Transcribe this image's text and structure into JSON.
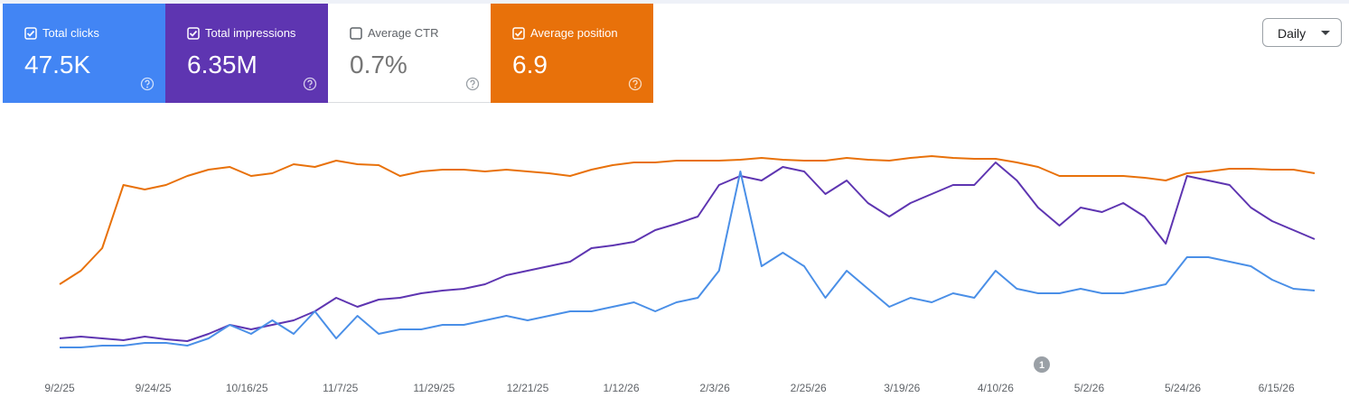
{
  "cards": [
    {
      "label": "Total clicks",
      "value": "47.5K",
      "checked": true,
      "color": "#4285f4"
    },
    {
      "label": "Total impressions",
      "value": "6.35M",
      "checked": true,
      "color": "#5e35b1"
    },
    {
      "label": "Average CTR",
      "value": "0.7%",
      "checked": false,
      "color": "#ffffff"
    },
    {
      "label": "Average position",
      "value": "6.9",
      "checked": true,
      "color": "#e8710a"
    }
  ],
  "controls": {
    "granularity": "Daily"
  },
  "annotations": [
    {
      "label": "1"
    }
  ],
  "chart_data": {
    "type": "line",
    "x": [
      "9/2/25",
      "9/7/25",
      "9/12/25",
      "9/17/25",
      "9/22/25",
      "9/27/25",
      "10/2/25",
      "10/7/25",
      "10/12/25",
      "10/17/25",
      "10/22/25",
      "10/27/25",
      "11/1/25",
      "11/6/25",
      "11/11/25",
      "11/16/25",
      "11/21/25",
      "11/26/25",
      "12/1/25",
      "12/6/25",
      "12/11/25",
      "12/16/25",
      "12/21/25",
      "12/26/25",
      "12/31/25",
      "1/5/26",
      "1/10/26",
      "1/15/26",
      "1/20/26",
      "1/25/26",
      "1/30/26",
      "2/4/26",
      "2/9/26",
      "2/14/26",
      "2/19/26",
      "2/24/26",
      "3/1/26",
      "3/6/26",
      "3/11/26",
      "3/16/26",
      "3/21/26",
      "3/26/26",
      "3/31/26",
      "4/5/26",
      "4/10/26",
      "4/15/26",
      "4/20/26",
      "4/25/26",
      "4/30/26",
      "5/5/26",
      "5/10/26",
      "5/15/26",
      "5/20/26",
      "5/25/26",
      "5/30/26",
      "6/4/26",
      "6/9/26",
      "6/14/26",
      "6/19/26",
      "6/24/26"
    ],
    "xticks": [
      "9/2/25",
      "9/24/25",
      "10/16/25",
      "11/7/25",
      "11/29/25",
      "12/21/25",
      "1/12/26",
      "2/3/26",
      "2/25/26",
      "3/19/26",
      "4/10/26",
      "5/2/26",
      "5/24/26",
      "6/15/26"
    ],
    "ylim": [
      0,
      270
    ],
    "series": [
      {
        "color": "#e8710a",
        "values": [
          85,
          100,
          125,
          195,
          190,
          195,
          205,
          212,
          215,
          205,
          208,
          218,
          215,
          222,
          218,
          217,
          205,
          210,
          212,
          212,
          210,
          212,
          210,
          208,
          205,
          212,
          217,
          220,
          220,
          222,
          222,
          222,
          223,
          225,
          223,
          222,
          222,
          225,
          223,
          222,
          225,
          227,
          225,
          224,
          224,
          220,
          215,
          205,
          205,
          205,
          205,
          203,
          200,
          208,
          210,
          213,
          213,
          212,
          212,
          208
        ]
      },
      {
        "color": "#5e35b1",
        "values": [
          25,
          27,
          25,
          23,
          27,
          24,
          22,
          30,
          40,
          35,
          40,
          45,
          55,
          70,
          60,
          68,
          70,
          75,
          78,
          80,
          85,
          95,
          100,
          105,
          110,
          125,
          128,
          132,
          145,
          152,
          160,
          195,
          205,
          200,
          215,
          210,
          185,
          200,
          175,
          160,
          175,
          185,
          195,
          195,
          220,
          200,
          170,
          150,
          170,
          165,
          175,
          160,
          130,
          205,
          200,
          195,
          170,
          155,
          145,
          135
        ]
      },
      {
        "color": "#4a8fe7",
        "values": [
          15,
          15,
          17,
          17,
          20,
          20,
          17,
          25,
          40,
          30,
          45,
          30,
          55,
          25,
          50,
          30,
          35,
          35,
          40,
          40,
          45,
          50,
          45,
          50,
          55,
          55,
          60,
          65,
          55,
          65,
          70,
          100,
          210,
          105,
          120,
          105,
          70,
          100,
          80,
          60,
          70,
          65,
          75,
          70,
          100,
          80,
          75,
          75,
          80,
          75,
          75,
          80,
          85,
          115,
          115,
          110,
          105,
          90,
          80,
          78
        ]
      }
    ]
  }
}
